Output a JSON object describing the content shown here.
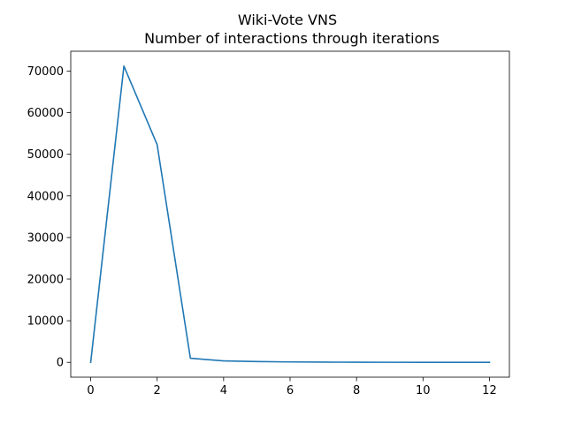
{
  "chart_data": {
    "type": "line",
    "title": "Wiki-Vote VNS",
    "subtitle": "Number of interactions through iterations",
    "xlabel": "",
    "ylabel": "",
    "xlim": [
      -0.6,
      12.6
    ],
    "ylim": [
      -3560,
      74760
    ],
    "grid": false,
    "x_ticks": [
      0,
      2,
      4,
      6,
      8,
      10,
      12
    ],
    "y_ticks": [
      0,
      10000,
      20000,
      30000,
      40000,
      50000,
      60000,
      70000
    ],
    "x_tick_labels": [
      "0",
      "2",
      "4",
      "6",
      "8",
      "10",
      "12"
    ],
    "y_tick_labels": [
      "0",
      "10000",
      "20000",
      "30000",
      "40000",
      "50000",
      "60000",
      "70000"
    ],
    "series": [
      {
        "color": "#1f77b4",
        "x": [
          0,
          1,
          2,
          3,
          4,
          5,
          6,
          7,
          8,
          9,
          10,
          11,
          12
        ],
        "y": [
          0,
          71200,
          52300,
          1000,
          350,
          200,
          100,
          60,
          30,
          20,
          10,
          5,
          0
        ]
      }
    ]
  }
}
